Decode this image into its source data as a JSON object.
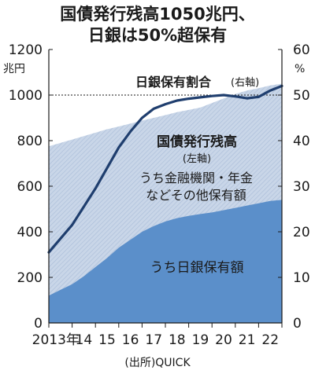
{
  "header": {
    "title_line1": "国債発行残高1050兆円、",
    "title_line2": "日銀は50%超保有"
  },
  "source": "(出所)QUICK",
  "colors": {
    "total_area": "#c9d6e8",
    "total_area_stripe": "#a9bcd8",
    "boj_area": "#5b8fca",
    "ratio_line": "#1f3e6e",
    "axis": "#1a1a1a",
    "background": "#ffffff"
  },
  "chart_data": {
    "type": "area",
    "x_tick_labels": [
      "2013年",
      "14",
      "15",
      "16",
      "17",
      "18",
      "19",
      "20",
      "21",
      "22"
    ],
    "x_range": [
      2013.0,
      2023.0
    ],
    "y_left": {
      "unit": "兆円",
      "ylim": [
        0,
        1200
      ],
      "ticks": [
        0,
        200,
        400,
        600,
        800,
        1000,
        1200
      ]
    },
    "y_right": {
      "unit": "%",
      "ylim": [
        0,
        60
      ],
      "ticks": [
        0,
        10,
        20,
        30,
        40,
        50,
        60
      ]
    },
    "grid": false,
    "reference_lines": [
      {
        "axis": "left",
        "value": 1000,
        "style": "dashed"
      }
    ],
    "series": [
      {
        "name": "国債発行残高",
        "annotation": "(左軸)",
        "axis": "left",
        "kind": "area",
        "x": [
          2013.0,
          2013.5,
          2014.0,
          2014.5,
          2015.0,
          2015.5,
          2016.0,
          2016.5,
          2017.0,
          2017.5,
          2018.0,
          2018.5,
          2019.0,
          2019.5,
          2020.0,
          2020.5,
          2021.0,
          2021.5,
          2022.0,
          2022.5,
          2023.0
        ],
        "values": [
          775,
          790,
          805,
          820,
          835,
          850,
          862,
          875,
          888,
          900,
          912,
          925,
          935,
          945,
          965,
          985,
          1005,
          1020,
          1030,
          1042,
          1050
        ]
      },
      {
        "name": "うち日銀保有額",
        "axis": "left",
        "kind": "area",
        "x": [
          2013.0,
          2013.5,
          2014.0,
          2014.5,
          2015.0,
          2015.5,
          2016.0,
          2016.5,
          2017.0,
          2017.5,
          2018.0,
          2018.5,
          2019.0,
          2019.5,
          2020.0,
          2020.5,
          2021.0,
          2021.5,
          2022.0,
          2022.5,
          2023.0
        ],
        "values": [
          120,
          145,
          170,
          205,
          245,
          285,
          330,
          365,
          400,
          425,
          445,
          460,
          470,
          478,
          485,
          495,
          505,
          515,
          525,
          535,
          540
        ]
      },
      {
        "name": "日銀保有割合",
        "annotation": "(右軸)",
        "axis": "right",
        "kind": "line",
        "x": [
          2013.0,
          2013.5,
          2014.0,
          2014.5,
          2015.0,
          2015.5,
          2016.0,
          2016.5,
          2017.0,
          2017.5,
          2018.0,
          2018.5,
          2019.0,
          2019.5,
          2020.0,
          2020.5,
          2021.0,
          2021.5,
          2022.0,
          2022.5,
          2023.0
        ],
        "values": [
          15.5,
          18.5,
          21.5,
          25.5,
          29.5,
          34.0,
          38.5,
          42.0,
          45.0,
          47.0,
          48.0,
          48.8,
          49.2,
          49.5,
          49.8,
          50.0,
          49.7,
          49.3,
          49.6,
          51.0,
          52.0
        ]
      }
    ],
    "annotations": [
      {
        "text": "うち金融機関・年金",
        "region": "upper area"
      },
      {
        "text": "などその他保有額",
        "region": "upper area"
      }
    ]
  }
}
